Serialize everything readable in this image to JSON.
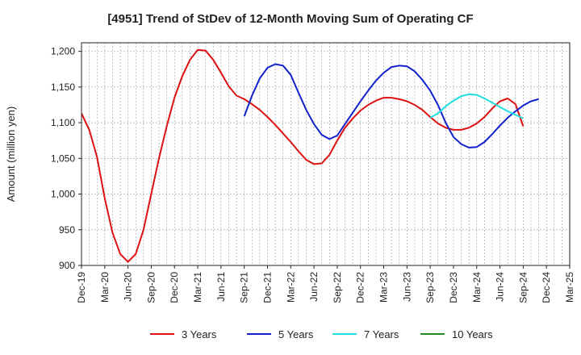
{
  "chart_data": {
    "type": "line",
    "title": "[4951]  Trend of StDev of 12-Month Moving Sum of Operating CF",
    "ylabel": "Amount (million yen)",
    "xlabel": "",
    "ylim": [
      900,
      1212
    ],
    "yticks": [
      900,
      950,
      1000,
      1050,
      1100,
      1150,
      1200
    ],
    "ytick_labels": [
      "900",
      "950",
      "1,000",
      "1,050",
      "1,100",
      "1,150",
      "1,200"
    ],
    "xlim": [
      "2019-12",
      "2025-03"
    ],
    "xtick_labels": [
      "Dec-19",
      "Mar-20",
      "Jun-20",
      "Sep-20",
      "Dec-20",
      "Mar-21",
      "Jun-21",
      "Sep-21",
      "Dec-21",
      "Mar-22",
      "Jun-22",
      "Sep-22",
      "Dec-22",
      "Mar-23",
      "Jun-23",
      "Sep-23",
      "Dec-23",
      "Mar-24",
      "Jun-24",
      "Sep-24",
      "Dec-24",
      "Mar-25"
    ],
    "grid": true,
    "legend_position": "bottom",
    "series": [
      {
        "name": "3 Years",
        "color": "#dd1111",
        "start": "2019-12",
        "values": [
          1113,
          1090,
          1052,
          994,
          946,
          916,
          905,
          916,
          950,
          1000,
          1050,
          1095,
          1135,
          1165,
          1188,
          1202,
          1201,
          1188,
          1170,
          1151,
          1138,
          1133,
          1126,
          1118,
          1108,
          1097,
          1085,
          1073,
          1060,
          1048,
          1042,
          1043,
          1055,
          1075,
          1093,
          1106,
          1117,
          1125,
          1131,
          1135,
          1135,
          1133,
          1130,
          1125,
          1118,
          1108,
          1099,
          1093,
          1090,
          1090,
          1093,
          1099,
          1108,
          1120,
          1130,
          1134,
          1126,
          1095
        ]
      },
      {
        "name": "5 Years",
        "color": "#1122cc",
        "start": "2021-09",
        "values": [
          1109,
          1138,
          1162,
          1177,
          1182,
          1180,
          1167,
          1142,
          1118,
          1098,
          1083,
          1077,
          1082,
          1098,
          1114,
          1130,
          1145,
          1159,
          1170,
          1178,
          1180,
          1179,
          1172,
          1160,
          1145,
          1125,
          1100,
          1080,
          1070,
          1065,
          1066,
          1073,
          1084,
          1096,
          1107,
          1116,
          1124,
          1130,
          1133
        ]
      },
      {
        "name": "7 Years",
        "color": "#22dddd",
        "start": "2023-09",
        "values": [
          1107,
          1113,
          1123,
          1131,
          1137,
          1140,
          1139,
          1134,
          1128,
          1122,
          1116,
          1111,
          1106
        ]
      },
      {
        "name": "10 Years",
        "color": "#228822",
        "start": "2023-09",
        "values": []
      }
    ]
  }
}
